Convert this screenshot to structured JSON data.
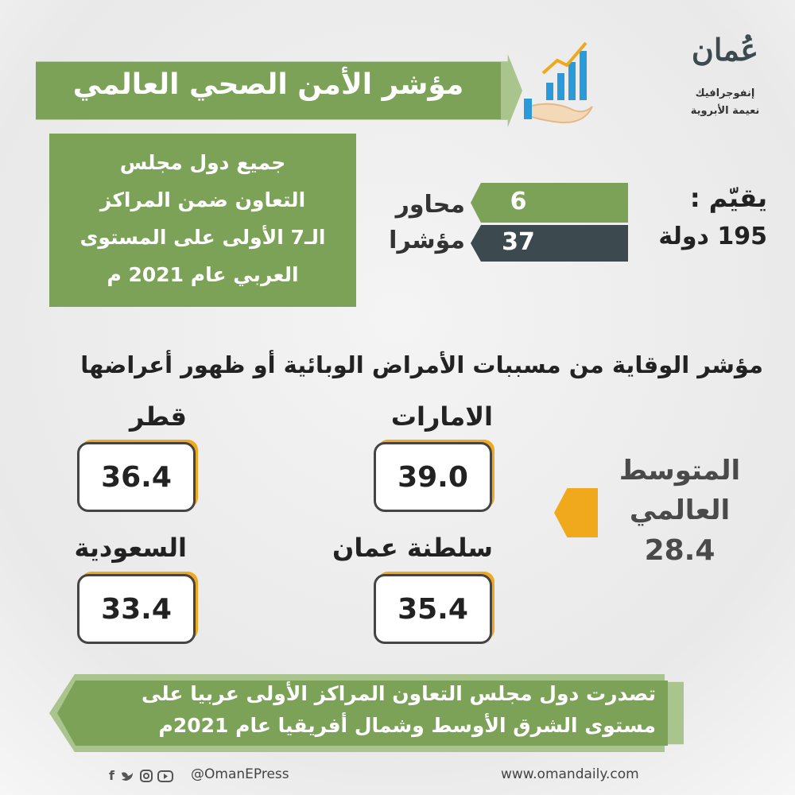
{
  "logo": {
    "name": "عُمان",
    "line1": "إنفوجرافيك",
    "line2": "نعيمة الأبروية"
  },
  "title": "مؤشر الأمن الصحي العالمي",
  "summary_box": {
    "lines": [
      "جميع دول مجلس",
      "التعاون ضمن المراكز",
      "الـ7 الأولى على المستوى",
      "العربي عام 2021 م"
    ]
  },
  "evaluates": {
    "label": "يقيّم :",
    "countries": "195 دولة"
  },
  "metrics": [
    {
      "number": "6",
      "label": "محاور"
    },
    {
      "number": "37",
      "label": "مؤشرا"
    }
  ],
  "section_title": "مؤشر الوقاية من مسببات الأمراض الوبائية أو ظهور أعراضها",
  "scores": [
    {
      "country": "الامارات",
      "value": "39.0"
    },
    {
      "country": "قطر",
      "value": "36.4"
    },
    {
      "country": "سلطنة عمان",
      "value": "35.4"
    },
    {
      "country": "السعودية",
      "value": "33.4"
    }
  ],
  "global_average": {
    "line1": "المتوسط",
    "line2": "العالمي",
    "value": "28.4"
  },
  "banner": {
    "lines": [
      "تصدرت دول مجلس التعاون المراكز الأولى عربيا على",
      "مستوى الشرق الأوسط وشمال أفريقيا عام 2021م"
    ]
  },
  "footer": {
    "handle": "@OmanEPress",
    "website": "www.omandaily.com"
  }
}
